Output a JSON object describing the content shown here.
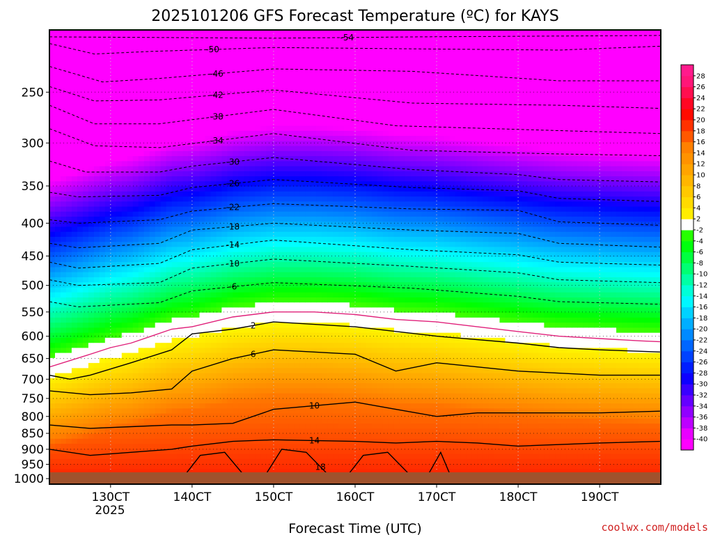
{
  "chart_data": {
    "type": "heatmap",
    "title": "2025101206 GFS Forecast Temperature (ºC) for KAYS",
    "xlabel": "Forecast Time (UTC)",
    "ylabel": "",
    "x_ticks": [
      "130CT",
      "140CT",
      "150CT",
      "160CT",
      "170CT",
      "180CT",
      "190CT"
    ],
    "x_year_label": "2025",
    "x_range_days": [
      12.25,
      19.75
    ],
    "y_scale": "log-pressure",
    "y_ticks": [
      250,
      300,
      350,
      400,
      450,
      500,
      550,
      600,
      650,
      700,
      750,
      800,
      850,
      900,
      950,
      1000
    ],
    "y_range_hpa": [
      200,
      1020
    ],
    "grid": true,
    "colorbar": {
      "unit": "ºC",
      "levels": [
        -40,
        -38,
        -36,
        -34,
        -32,
        -30,
        -28,
        -26,
        -24,
        -22,
        -20,
        -18,
        -16,
        -14,
        -12,
        -10,
        -8,
        -6,
        -4,
        -2,
        2,
        4,
        6,
        8,
        10,
        12,
        14,
        16,
        18,
        20,
        22,
        24,
        26,
        28
      ],
      "placement": "right"
    },
    "freezing_level_hpa": {
      "x": [
        12.25,
        12.5,
        12.75,
        13.0,
        13.25,
        13.5,
        13.75,
        14.0,
        14.5,
        15.0,
        15.5,
        16.0,
        16.5,
        17.0,
        17.5,
        18.0,
        18.5,
        19.0,
        19.5,
        19.75
      ],
      "y": [
        670,
        655,
        640,
        625,
        615,
        600,
        585,
        580,
        560,
        550,
        550,
        555,
        565,
        570,
        580,
        590,
        600,
        605,
        610,
        612
      ]
    },
    "contours": [
      {
        "value": -54,
        "x": [
          12.25,
          15.0,
          16.8,
          19.75
        ],
        "y": [
          205,
          206,
          205,
          204
        ]
      },
      {
        "value": -50,
        "x": [
          12.25,
          12.8,
          13.5,
          15.0,
          16.7,
          18.5,
          19.75
        ],
        "y": [
          210,
          218,
          216,
          213,
          214,
          215,
          212
        ]
      },
      {
        "value": -46,
        "x": [
          12.25,
          12.9,
          13.6,
          15.0,
          16.7,
          18.5,
          19.75
        ],
        "y": [
          228,
          241,
          238,
          230,
          232,
          240,
          240
        ]
      },
      {
        "value": -42,
        "x": [
          12.25,
          12.8,
          13.6,
          15.0,
          16.7,
          18.5,
          19.75
        ],
        "y": [
          245,
          258,
          257,
          248,
          260,
          262,
          265
        ]
      },
      {
        "value": -38,
        "x": [
          12.25,
          12.8,
          13.6,
          15.0,
          16.5,
          18.5,
          19.75
        ],
        "y": [
          262,
          280,
          280,
          266,
          282,
          287,
          290
        ]
      },
      {
        "value": -34,
        "x": [
          12.25,
          12.8,
          13.6,
          15.0,
          16.7,
          18.5,
          19.75
        ],
        "y": [
          285,
          303,
          305,
          290,
          308,
          312,
          314
        ]
      },
      {
        "value": -30,
        "x": [
          12.25,
          12.7,
          13.6,
          14.0,
          15.0,
          16.7,
          18.0,
          18.5,
          19.75
        ],
        "y": [
          320,
          333,
          333,
          326,
          316,
          330,
          336,
          342,
          345
        ]
      },
      {
        "value": -26,
        "x": [
          12.25,
          12.6,
          13.6,
          14.0,
          15.0,
          16.7,
          18.0,
          18.5,
          19.75
        ],
        "y": [
          358,
          364,
          362,
          352,
          342,
          352,
          356,
          366,
          370
        ]
      },
      {
        "value": -22,
        "x": [
          12.25,
          12.6,
          13.6,
          14.0,
          15.0,
          16.7,
          18.0,
          18.5,
          19.75
        ],
        "y": [
          395,
          400,
          395,
          383,
          373,
          380,
          382,
          398,
          403
        ]
      },
      {
        "value": -18,
        "x": [
          12.25,
          12.6,
          13.6,
          14.0,
          15.0,
          16.7,
          18.0,
          18.5,
          19.75
        ],
        "y": [
          430,
          437,
          430,
          410,
          400,
          410,
          415,
          430,
          436
        ]
      },
      {
        "value": -14,
        "x": [
          12.25,
          12.6,
          13.6,
          14.0,
          15.0,
          16.7,
          18.0,
          18.5,
          19.75
        ],
        "y": [
          460,
          470,
          462,
          440,
          425,
          440,
          448,
          460,
          465
        ]
      },
      {
        "value": -10,
        "x": [
          12.25,
          12.6,
          13.6,
          14.0,
          15.0,
          16.7,
          18.0,
          18.5,
          19.75
        ],
        "y": [
          490,
          500,
          495,
          470,
          455,
          467,
          478,
          490,
          495
        ]
      },
      {
        "value": -6,
        "x": [
          12.25,
          12.6,
          13.6,
          14.0,
          15.0,
          16.7,
          18.0,
          18.5,
          19.75
        ],
        "y": [
          530,
          540,
          532,
          510,
          495,
          505,
          520,
          530,
          535
        ]
      },
      {
        "value": 2,
        "x": [
          12.25,
          12.5,
          12.75,
          13.25,
          13.75,
          14.0,
          14.5,
          15.0,
          16.0,
          17.0,
          18.0,
          18.5,
          19.0,
          19.75
        ],
        "y": [
          690,
          700,
          690,
          660,
          630,
          595,
          585,
          570,
          580,
          600,
          615,
          625,
          630,
          635
        ]
      },
      {
        "value": 6,
        "x": [
          12.25,
          12.75,
          13.25,
          13.75,
          14.0,
          14.5,
          15.0,
          16.0,
          16.5,
          17.0,
          18.0,
          19.0,
          19.75
        ],
        "y": [
          730,
          740,
          735,
          725,
          680,
          650,
          630,
          640,
          680,
          660,
          680,
          690,
          690
        ]
      },
      {
        "value": 10,
        "x": [
          12.25,
          12.75,
          13.25,
          13.75,
          14.0,
          14.5,
          15.0,
          16.0,
          16.5,
          17.0,
          17.5,
          18.0,
          19.0,
          19.75
        ],
        "y": [
          825,
          835,
          830,
          825,
          825,
          820,
          780,
          760,
          780,
          800,
          790,
          790,
          790,
          785
        ]
      },
      {
        "value": 14,
        "x": [
          12.25,
          12.75,
          13.25,
          13.75,
          14.0,
          14.5,
          15.0,
          16.0,
          16.5,
          17.0,
          17.5,
          18.0,
          19.0,
          19.75
        ],
        "y": [
          900,
          920,
          910,
          900,
          890,
          875,
          870,
          875,
          880,
          875,
          880,
          890,
          880,
          875
        ]
      },
      {
        "value": 18,
        "x": [
          13.85,
          14.1,
          14.4,
          14.7,
          14.85,
          15.1,
          15.4,
          15.75,
          15.85,
          16.1,
          16.4,
          16.75,
          16.85,
          17.05,
          17.2
        ],
        "y": [
          1010,
          920,
          910,
          1010,
          1010,
          900,
          910,
          1010,
          1010,
          920,
          910,
          1010,
          1010,
          910,
          1010
        ]
      }
    ]
  },
  "credit": "coolwx.com/models",
  "colors": {
    "ground": "#a0522d",
    "freezing_line": "#e0207a",
    "credit": "#d02020"
  }
}
